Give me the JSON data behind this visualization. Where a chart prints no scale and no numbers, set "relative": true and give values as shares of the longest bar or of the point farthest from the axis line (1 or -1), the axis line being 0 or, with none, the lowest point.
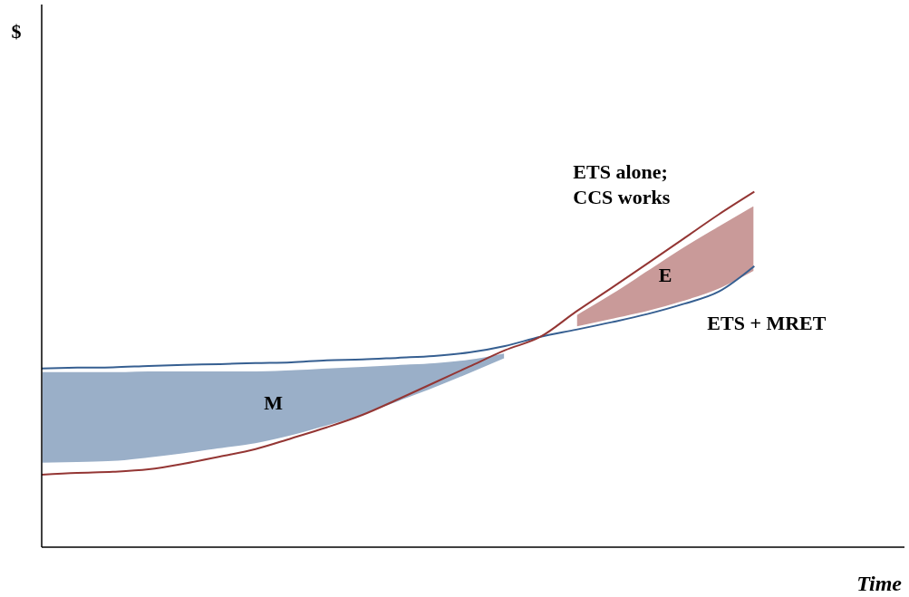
{
  "chart_data": {
    "type": "line",
    "relative": true,
    "xlabel": "Time",
    "annotations": [
      "M",
      "E",
      "$"
    ],
    "categories": [
      null,
      null,
      null,
      null,
      null,
      null,
      null,
      null,
      null,
      null,
      null,
      null,
      null,
      null,
      null,
      null,
      null,
      null,
      null,
      null,
      null
    ],
    "series": [
      {
        "name": "ETS + MRET",
        "color": "#365f91",
        "values": [
          0.503,
          0.505,
          0.506,
          0.51,
          0.513,
          0.515,
          0.518,
          0.52,
          0.526,
          0.528,
          0.533,
          0.538,
          0.548,
          0.566,
          0.592,
          0.612,
          0.633,
          0.656,
          0.684,
          0.719,
          0.791
        ],
        "lower": [
          0.235,
          0.237,
          0.24,
          0.25,
          0.262,
          0.276,
          0.29,
          0.312,
          0.34,
          0.37,
          0.408,
          0.446,
          0.487,
          0.53,
          null,
          null,
          null,
          null,
          null,
          null,
          null
        ],
        "upper": [
          0.495,
          0.495,
          0.495,
          0.497,
          0.497,
          0.497,
          0.497,
          0.5,
          0.505,
          0.51,
          0.515,
          0.52,
          0.53,
          0.548,
          null,
          null,
          null,
          null,
          null,
          null,
          null
        ]
      },
      {
        "name": "ETS alone; CCS works",
        "color": "#943634",
        "values": [
          0.204,
          0.209,
          0.212,
          0.219,
          0.235,
          0.255,
          0.276,
          0.306,
          0.337,
          0.372,
          0.416,
          0.462,
          0.508,
          0.554,
          0.592,
          0.663,
          0.73,
          0.798,
          0.867,
          0.936,
          1.0
        ],
        "lower": [
          null,
          null,
          null,
          null,
          null,
          null,
          null,
          null,
          null,
          null,
          null,
          null,
          null,
          null,
          null,
          0.618,
          0.64,
          0.662,
          0.69,
          0.725,
          0.776
        ],
        "upper": [
          null,
          null,
          null,
          null,
          null,
          null,
          null,
          null,
          null,
          null,
          null,
          null,
          null,
          null,
          null,
          0.655,
          0.715,
          0.78,
          0.845,
          0.905,
          0.964
        ]
      }
    ]
  }
}
